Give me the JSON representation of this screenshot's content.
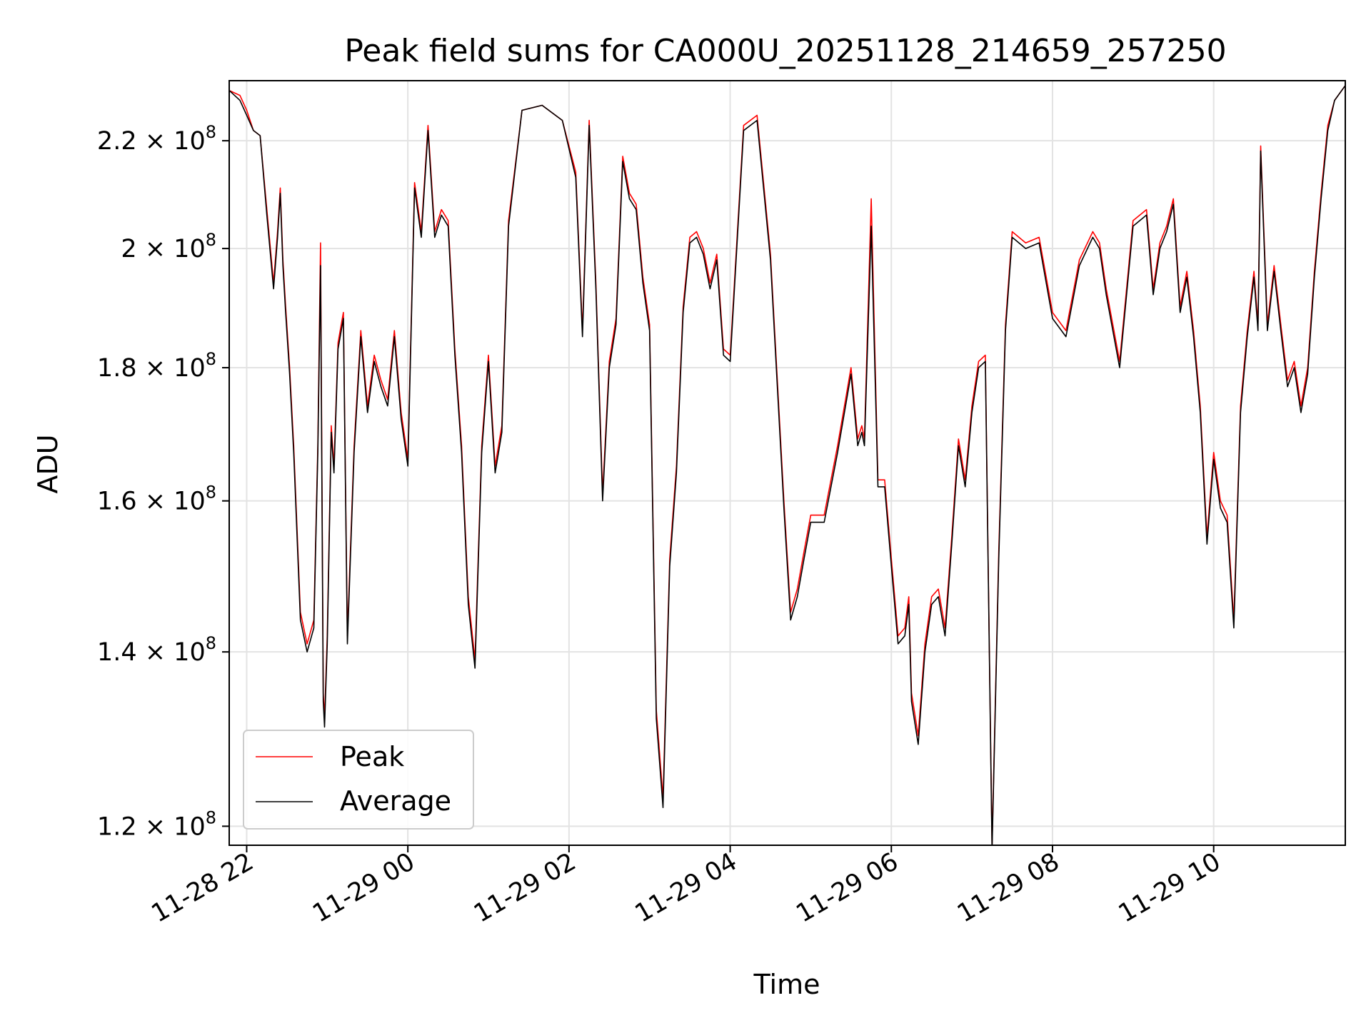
{
  "chart_data": {
    "type": "line",
    "title": "Peak field sums for CA000U_20251128_214659_257250",
    "xlabel": "Time",
    "ylabel": "ADU",
    "yscale": "log",
    "ylim": [
      118000000,
      232000000
    ],
    "xlim": [
      "2025-11-28 21:47",
      "2025-11-29 11:38"
    ],
    "grid": true,
    "legend_position": "lower-left",
    "x_ticks": [
      "11-28 22",
      "11-29 00",
      "11-29 02",
      "11-29 04",
      "11-29 06",
      "11-29 08",
      "11-29 10"
    ],
    "y_ticks": [
      {
        "mantissa": "1.2",
        "exponent": "8",
        "value": 120000000
      },
      {
        "mantissa": "1.4",
        "exponent": "8",
        "value": 140000000
      },
      {
        "mantissa": "1.6",
        "exponent": "8",
        "value": 160000000
      },
      {
        "mantissa": "1.8",
        "exponent": "8",
        "value": 180000000
      },
      {
        "mantissa": "2",
        "exponent": "8",
        "value": 200000000
      },
      {
        "mantissa": "2.2",
        "exponent": "8",
        "value": 220000000
      }
    ],
    "series": [
      {
        "name": "Peak",
        "color": "#ff0000",
        "x": [
          "2025-11-28 21:47",
          "2025-11-28 21:55",
          "2025-11-28 22:00",
          "2025-11-28 22:05",
          "2025-11-28 22:10",
          "2025-11-28 22:15",
          "2025-11-28 22:20",
          "2025-11-28 22:23",
          "2025-11-28 22:25",
          "2025-11-28 22:27",
          "2025-11-28 22:29",
          "2025-11-28 22:32",
          "2025-11-28 22:35",
          "2025-11-28 22:40",
          "2025-11-28 22:45",
          "2025-11-28 22:50",
          "2025-11-28 22:53",
          "2025-11-28 22:55",
          "2025-11-28 22:57",
          "2025-11-28 22:58",
          "2025-11-28 23:00",
          "2025-11-28 23:03",
          "2025-11-28 23:05",
          "2025-11-28 23:08",
          "2025-11-28 23:12",
          "2025-11-28 23:15",
          "2025-11-28 23:20",
          "2025-11-28 23:25",
          "2025-11-28 23:30",
          "2025-11-28 23:35",
          "2025-11-28 23:40",
          "2025-11-28 23:45",
          "2025-11-28 23:50",
          "2025-11-28 23:55",
          "2025-11-29 00:00",
          "2025-11-29 00:05",
          "2025-11-29 00:10",
          "2025-11-29 00:15",
          "2025-11-29 00:20",
          "2025-11-29 00:25",
          "2025-11-29 00:30",
          "2025-11-29 00:35",
          "2025-11-29 00:40",
          "2025-11-29 00:45",
          "2025-11-29 00:50",
          "2025-11-29 00:55",
          "2025-11-29 01:00",
          "2025-11-29 01:05",
          "2025-11-29 01:10",
          "2025-11-29 01:15",
          "2025-11-29 01:25",
          "2025-11-29 01:40",
          "2025-11-29 01:55",
          "2025-11-29 02:05",
          "2025-11-29 02:10",
          "2025-11-29 02:15",
          "2025-11-29 02:20",
          "2025-11-29 02:25",
          "2025-11-29 02:30",
          "2025-11-29 02:35",
          "2025-11-29 02:40",
          "2025-11-29 02:45",
          "2025-11-29 02:50",
          "2025-11-29 02:55",
          "2025-11-29 03:00",
          "2025-11-29 03:05",
          "2025-11-29 03:10",
          "2025-11-29 03:15",
          "2025-11-29 03:20",
          "2025-11-29 03:25",
          "2025-11-29 03:30",
          "2025-11-29 03:35",
          "2025-11-29 03:40",
          "2025-11-29 03:45",
          "2025-11-29 03:50",
          "2025-11-29 03:55",
          "2025-11-29 04:00",
          "2025-11-29 04:10",
          "2025-11-29 04:20",
          "2025-11-29 04:30",
          "2025-11-29 04:40",
          "2025-11-29 04:45",
          "2025-11-29 04:50",
          "2025-11-29 04:55",
          "2025-11-29 05:00",
          "2025-11-29 05:10",
          "2025-11-29 05:20",
          "2025-11-29 05:30",
          "2025-11-29 05:35",
          "2025-11-29 05:38",
          "2025-11-29 05:40",
          "2025-11-29 05:45",
          "2025-11-29 05:50",
          "2025-11-29 05:55",
          "2025-11-29 06:00",
          "2025-11-29 06:05",
          "2025-11-29 06:10",
          "2025-11-29 06:13",
          "2025-11-29 06:15",
          "2025-11-29 06:20",
          "2025-11-29 06:25",
          "2025-11-29 06:30",
          "2025-11-29 06:35",
          "2025-11-29 06:40",
          "2025-11-29 06:45",
          "2025-11-29 06:50",
          "2025-11-29 06:55",
          "2025-11-29 07:00",
          "2025-11-29 07:05",
          "2025-11-29 07:10",
          "2025-11-29 07:15",
          "2025-11-29 07:20",
          "2025-11-29 07:25",
          "2025-11-29 07:30",
          "2025-11-29 07:40",
          "2025-11-29 07:50",
          "2025-11-29 08:00",
          "2025-11-29 08:10",
          "2025-11-29 08:20",
          "2025-11-29 08:30",
          "2025-11-29 08:35",
          "2025-11-29 08:40",
          "2025-11-29 08:50",
          "2025-11-29 09:00",
          "2025-11-29 09:10",
          "2025-11-29 09:15",
          "2025-11-29 09:20",
          "2025-11-29 09:25",
          "2025-11-29 09:30",
          "2025-11-29 09:35",
          "2025-11-29 09:40",
          "2025-11-29 09:45",
          "2025-11-29 09:50",
          "2025-11-29 09:55",
          "2025-11-29 10:00",
          "2025-11-29 10:05",
          "2025-11-29 10:10",
          "2025-11-29 10:15",
          "2025-11-29 10:20",
          "2025-11-29 10:25",
          "2025-11-29 10:30",
          "2025-11-29 10:33",
          "2025-11-29 10:35",
          "2025-11-29 10:40",
          "2025-11-29 10:45",
          "2025-11-29 10:50",
          "2025-11-29 10:55",
          "2025-11-29 11:00",
          "2025-11-29 11:05",
          "2025-11-29 11:10",
          "2025-11-29 11:15",
          "2025-11-29 11:20",
          "2025-11-29 11:25",
          "2025-11-29 11:30",
          "2025-11-29 11:38"
        ],
        "values": [
          230000000,
          229000000,
          226000000,
          222000000,
          221000000,
          207000000,
          194000000,
          203000000,
          211000000,
          198000000,
          190000000,
          180000000,
          168000000,
          145000000,
          141000000,
          144000000,
          168000000,
          201000000,
          135000000,
          132000000,
          142000000,
          171000000,
          165000000,
          184000000,
          189000000,
          142000000,
          168000000,
          186000000,
          174000000,
          182000000,
          178000000,
          175000000,
          186000000,
          173000000,
          166000000,
          212000000,
          203000000,
          223000000,
          203000000,
          207000000,
          205000000,
          183000000,
          168000000,
          147000000,
          139000000,
          168000000,
          182000000,
          165000000,
          171000000,
          205000000,
          226000000,
          227000000,
          224000000,
          214000000,
          186000000,
          224000000,
          194000000,
          161000000,
          181000000,
          188000000,
          217000000,
          210000000,
          208000000,
          195000000,
          187000000,
          133000000,
          123000000,
          152000000,
          165000000,
          190000000,
          202000000,
          203000000,
          200000000,
          194000000,
          199000000,
          183000000,
          182000000,
          223000000,
          225000000,
          199000000,
          160000000,
          145000000,
          148000000,
          153000000,
          158000000,
          158000000,
          168000000,
          180000000,
          169000000,
          171000000,
          169000000,
          209000000,
          163000000,
          163000000,
          152000000,
          142000000,
          143000000,
          147000000,
          135000000,
          130000000,
          141000000,
          147000000,
          148000000,
          143000000,
          155000000,
          169000000,
          163000000,
          174000000,
          181000000,
          182000000,
          118000000,
          153000000,
          187000000,
          203000000,
          201000000,
          202000000,
          189000000,
          186000000,
          198000000,
          203000000,
          201000000,
          193000000,
          181000000,
          205000000,
          207000000,
          193000000,
          201000000,
          204000000,
          209000000,
          190000000,
          196000000,
          186000000,
          174000000,
          155000000,
          167000000,
          160000000,
          158000000,
          144000000,
          174000000,
          186000000,
          196000000,
          187000000,
          219000000,
          187000000,
          197000000,
          187000000,
          178000000,
          181000000,
          174000000,
          180000000,
          196000000,
          210000000,
          223000000,
          228000000,
          231000000
        ],
        "note": ""
      },
      {
        "name": "Average",
        "color": "#000000",
        "x": [
          "2025-11-28 21:47",
          "2025-11-28 21:55",
          "2025-11-28 22:00",
          "2025-11-28 22:05",
          "2025-11-28 22:10",
          "2025-11-28 22:15",
          "2025-11-28 22:20",
          "2025-11-28 22:23",
          "2025-11-28 22:25",
          "2025-11-28 22:27",
          "2025-11-28 22:29",
          "2025-11-28 22:32",
          "2025-11-28 22:35",
          "2025-11-28 22:40",
          "2025-11-28 22:45",
          "2025-11-28 22:50",
          "2025-11-28 22:53",
          "2025-11-28 22:55",
          "2025-11-28 22:57",
          "2025-11-28 22:58",
          "2025-11-28 23:00",
          "2025-11-28 23:03",
          "2025-11-28 23:05",
          "2025-11-28 23:08",
          "2025-11-28 23:12",
          "2025-11-28 23:15",
          "2025-11-28 23:20",
          "2025-11-28 23:25",
          "2025-11-28 23:30",
          "2025-11-28 23:35",
          "2025-11-28 23:40",
          "2025-11-28 23:45",
          "2025-11-28 23:50",
          "2025-11-28 23:55",
          "2025-11-29 00:00",
          "2025-11-29 00:05",
          "2025-11-29 00:10",
          "2025-11-29 00:15",
          "2025-11-29 00:20",
          "2025-11-29 00:25",
          "2025-11-29 00:30",
          "2025-11-29 00:35",
          "2025-11-29 00:40",
          "2025-11-29 00:45",
          "2025-11-29 00:50",
          "2025-11-29 00:55",
          "2025-11-29 01:00",
          "2025-11-29 01:05",
          "2025-11-29 01:10",
          "2025-11-29 01:15",
          "2025-11-29 01:25",
          "2025-11-29 01:40",
          "2025-11-29 01:55",
          "2025-11-29 02:05",
          "2025-11-29 02:10",
          "2025-11-29 02:15",
          "2025-11-29 02:20",
          "2025-11-29 02:25",
          "2025-11-29 02:30",
          "2025-11-29 02:35",
          "2025-11-29 02:40",
          "2025-11-29 02:45",
          "2025-11-29 02:50",
          "2025-11-29 02:55",
          "2025-11-29 03:00",
          "2025-11-29 03:05",
          "2025-11-29 03:10",
          "2025-11-29 03:15",
          "2025-11-29 03:20",
          "2025-11-29 03:25",
          "2025-11-29 03:30",
          "2025-11-29 03:35",
          "2025-11-29 03:40",
          "2025-11-29 03:45",
          "2025-11-29 03:50",
          "2025-11-29 03:55",
          "2025-11-29 04:00",
          "2025-11-29 04:10",
          "2025-11-29 04:20",
          "2025-11-29 04:30",
          "2025-11-29 04:40",
          "2025-11-29 04:45",
          "2025-11-29 04:50",
          "2025-11-29 04:55",
          "2025-11-29 05:00",
          "2025-11-29 05:10",
          "2025-11-29 05:20",
          "2025-11-29 05:30",
          "2025-11-29 05:35",
          "2025-11-29 05:38",
          "2025-11-29 05:40",
          "2025-11-29 05:45",
          "2025-11-29 05:50",
          "2025-11-29 05:55",
          "2025-11-29 06:00",
          "2025-11-29 06:05",
          "2025-11-29 06:10",
          "2025-11-29 06:13",
          "2025-11-29 06:15",
          "2025-11-29 06:20",
          "2025-11-29 06:25",
          "2025-11-29 06:30",
          "2025-11-29 06:35",
          "2025-11-29 06:40",
          "2025-11-29 06:45",
          "2025-11-29 06:50",
          "2025-11-29 06:55",
          "2025-11-29 07:00",
          "2025-11-29 07:05",
          "2025-11-29 07:10",
          "2025-11-29 07:15",
          "2025-11-29 07:20",
          "2025-11-29 07:25",
          "2025-11-29 07:30",
          "2025-11-29 07:40",
          "2025-11-29 07:50",
          "2025-11-29 08:00",
          "2025-11-29 08:10",
          "2025-11-29 08:20",
          "2025-11-29 08:30",
          "2025-11-29 08:35",
          "2025-11-29 08:40",
          "2025-11-29 08:50",
          "2025-11-29 09:00",
          "2025-11-29 09:10",
          "2025-11-29 09:15",
          "2025-11-29 09:20",
          "2025-11-29 09:25",
          "2025-11-29 09:30",
          "2025-11-29 09:35",
          "2025-11-29 09:40",
          "2025-11-29 09:45",
          "2025-11-29 09:50",
          "2025-11-29 09:55",
          "2025-11-29 10:00",
          "2025-11-29 10:05",
          "2025-11-29 10:10",
          "2025-11-29 10:15",
          "2025-11-29 10:20",
          "2025-11-29 10:25",
          "2025-11-29 10:30",
          "2025-11-29 10:33",
          "2025-11-29 10:35",
          "2025-11-29 10:40",
          "2025-11-29 10:45",
          "2025-11-29 10:50",
          "2025-11-29 10:55",
          "2025-11-29 11:00",
          "2025-11-29 11:05",
          "2025-11-29 11:10",
          "2025-11-29 11:15",
          "2025-11-29 11:20",
          "2025-11-29 11:25",
          "2025-11-29 11:30",
          "2025-11-29 11:38"
        ],
        "values": [
          230000000,
          228000000,
          225000000,
          222000000,
          221000000,
          206000000,
          193000000,
          202000000,
          210000000,
          197000000,
          189000000,
          179000000,
          167000000,
          144000000,
          140000000,
          143000000,
          167000000,
          197000000,
          134000000,
          131000000,
          141000000,
          170000000,
          164000000,
          183000000,
          188000000,
          141000000,
          167000000,
          185000000,
          173000000,
          181000000,
          177000000,
          174000000,
          185000000,
          172000000,
          165000000,
          211000000,
          202000000,
          222000000,
          202000000,
          206000000,
          204000000,
          182000000,
          167000000,
          146000000,
          138000000,
          167000000,
          181000000,
          164000000,
          170000000,
          204000000,
          226000000,
          227000000,
          224000000,
          213000000,
          185000000,
          223000000,
          193000000,
          160000000,
          180000000,
          187000000,
          216000000,
          209000000,
          207000000,
          194000000,
          186000000,
          132000000,
          122000000,
          151000000,
          164000000,
          189000000,
          201000000,
          202000000,
          199000000,
          193000000,
          198000000,
          182000000,
          181000000,
          222000000,
          224000000,
          198000000,
          159000000,
          144000000,
          147000000,
          152000000,
          157000000,
          157000000,
          167000000,
          179000000,
          168000000,
          170000000,
          168000000,
          204000000,
          162000000,
          162000000,
          151000000,
          141000000,
          142000000,
          146000000,
          134000000,
          129000000,
          140000000,
          146000000,
          147000000,
          142000000,
          154000000,
          168000000,
          162000000,
          173000000,
          180000000,
          181000000,
          117500000,
          152000000,
          186000000,
          202000000,
          200000000,
          201000000,
          188000000,
          185000000,
          197000000,
          202000000,
          200000000,
          192000000,
          180000000,
          204000000,
          206000000,
          192000000,
          200000000,
          203000000,
          208000000,
          189000000,
          195000000,
          185000000,
          173000000,
          154000000,
          166000000,
          159000000,
          157000000,
          143000000,
          173000000,
          185000000,
          195000000,
          186000000,
          218000000,
          186000000,
          196000000,
          186000000,
          177000000,
          180000000,
          173000000,
          179000000,
          195000000,
          209000000,
          222000000,
          228000000,
          231000000
        ]
      }
    ]
  }
}
